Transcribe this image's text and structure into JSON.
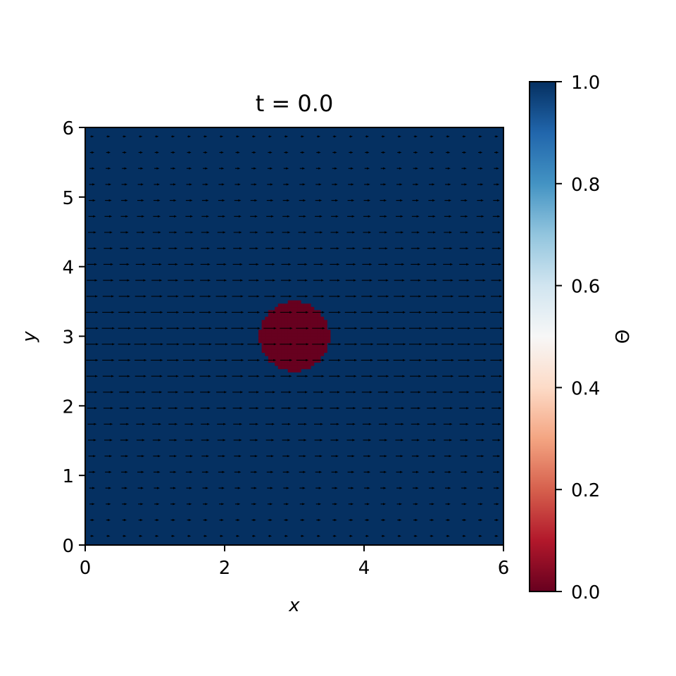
{
  "chart_data": {
    "type": "heatmap",
    "title": "t = 0.0",
    "xlabel": "x",
    "ylabel": "y",
    "xlim": [
      0,
      6
    ],
    "ylim": [
      0,
      6
    ],
    "xticks": [
      0,
      2,
      4,
      6
    ],
    "yticks": [
      0,
      1,
      2,
      3,
      4,
      5,
      6
    ],
    "field": {
      "background_value": 1.0,
      "disk": {
        "center": [
          3.0,
          3.0
        ],
        "radius": 0.5,
        "value": 0.0
      }
    },
    "quiver": {
      "direction": "+x",
      "y_rows_min": 0.13,
      "y_rows_max": 5.87,
      "row_count": 26,
      "x_start": 0.1,
      "x_end": 5.9,
      "x_count": 26,
      "color": "#000000"
    },
    "colorbar": {
      "label": "Θ",
      "range": [
        0.0,
        1.0
      ],
      "ticks": [
        "0.0",
        "0.2",
        "0.4",
        "0.6",
        "0.8",
        "1.0"
      ],
      "colormap": "RdBu",
      "stops": [
        "#67001f",
        "#b2182b",
        "#d6604d",
        "#f4a582",
        "#fddbc7",
        "#f7f7f7",
        "#d1e5f0",
        "#92c5de",
        "#4393c3",
        "#2166ac",
        "#053061"
      ]
    }
  }
}
